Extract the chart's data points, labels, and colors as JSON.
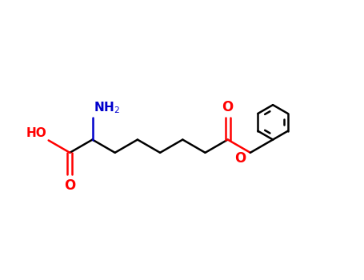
{
  "background_color": "#ffffff",
  "bond_color_cc": "#000000",
  "O_color": "#ff0000",
  "N_color": "#0000cc",
  "font_size_atom": 11,
  "lw": 1.8,
  "benz_r": 0.48,
  "fig_w": 4.55,
  "fig_h": 3.5,
  "chain_step": 0.72,
  "xlim": [
    0,
    10
  ],
  "ylim": [
    0,
    7.0
  ]
}
